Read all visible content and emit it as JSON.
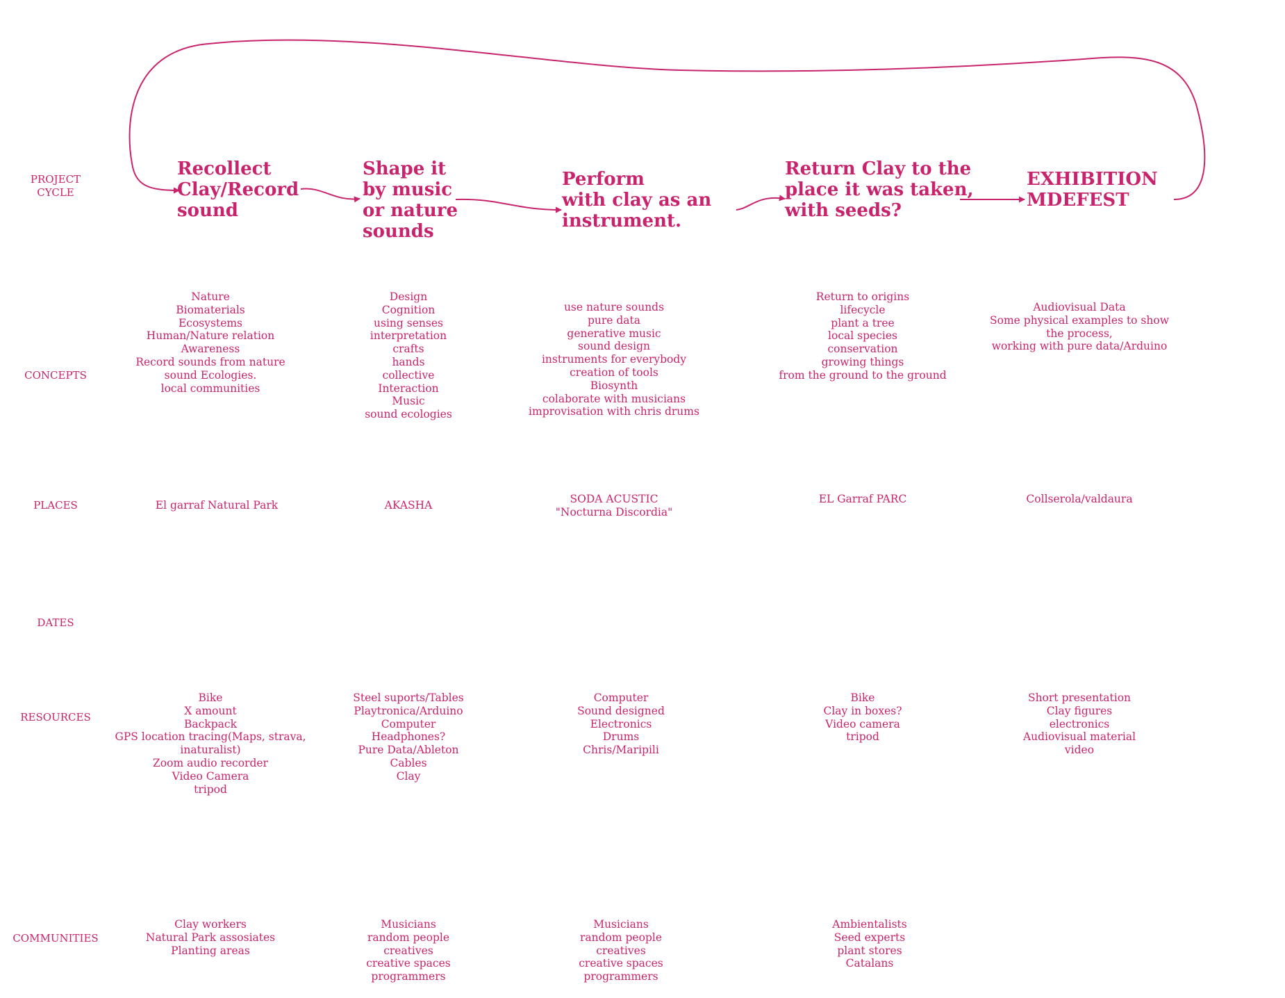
{
  "accent_color": "#c8246d",
  "row_labels": {
    "project_cycle": "PROJECT\nCYCLE",
    "concepts": "CONCEPTS",
    "places": "PLACES",
    "dates": "DATES",
    "resources": "RESOURCES",
    "communities": "COMMUNITIES"
  },
  "stages": [
    "Recollect\nClay/Record\nsound",
    "Shape it\nby music\nor nature\nsounds",
    "Perform\nwith clay as an\ninstrument.",
    "Return Clay to the\nplace it was taken,\nwith seeds?",
    "EXHIBITION\nMDEFEST"
  ],
  "concepts": [
    "Nature\nBiomaterials\nEcosystems\nHuman/Nature relation\nAwareness\nRecord sounds from nature\nsound Ecologies.\nlocal communities",
    "Design\nCognition\nusing senses\ninterpretation\ncrafts\nhands\ncollective\nInteraction\nMusic\nsound ecologies",
    "use nature sounds\npure data\ngenerative music\nsound design\ninstruments for everybody\ncreation of tools\nBiosynth\ncolaborate with musicians\nimprovisation with chris drums",
    "Return to origins\nlifecycle\nplant a tree\nlocal species\nconservation\ngrowing things\nfrom the ground to the ground",
    "Audiovisual Data\nSome physical examples to show\nthe process,\nworking with pure data/Arduino"
  ],
  "places": [
    "El garraf Natural Park",
    "AKASHA",
    "SODA ACUSTIC\n\"Nocturna Discordia\"",
    "EL Garraf PARC",
    "Collserola/valdaura"
  ],
  "resources": [
    "Bike\nX amount\nBackpack\nGPS location tracing(Maps, strava,\ninaturalist)\nZoom audio recorder\nVideo Camera\ntripod",
    "Steel suports/Tables\nPlaytronica/Arduino\nComputer\nHeadphones?\nPure Data/Ableton\nCables\nClay",
    "Computer\nSound designed\nElectronics\nDrums\nChris/Maripili",
    "Bike\nClay in boxes?\nVideo camera\ntripod",
    "Short presentation\nClay figures\nelectronics\nAudiovisual material\nvideo"
  ],
  "communities": [
    "Clay workers\nNatural Park assosiates\nPlanting areas",
    "Musicians\nrandom people\ncreatives\ncreative spaces\nprogrammers",
    "Musicians\nrandom people\ncreatives\ncreative spaces\nprogrammers",
    "Ambientalists\nSeed experts\nplant stores\nCatalans"
  ]
}
